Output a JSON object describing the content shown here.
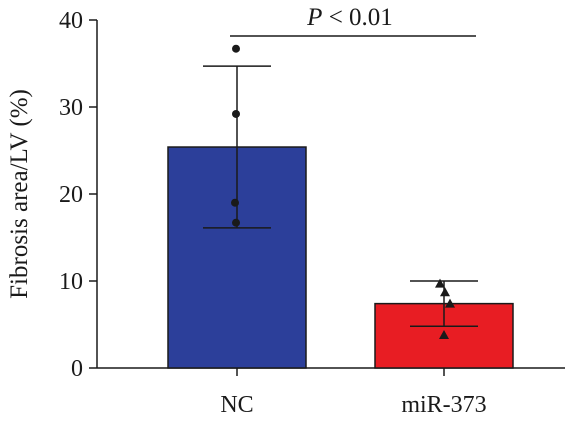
{
  "chart_data": {
    "type": "bar",
    "ylabel": "Fibrosis area/LV (%)",
    "xlabel": "",
    "ylim": [
      0,
      40
    ],
    "yticks": [
      0,
      10,
      20,
      30,
      40
    ],
    "categories": [
      "NC",
      "miR-373"
    ],
    "values": [
      25.4,
      7.4
    ],
    "error_upper": [
      34.7,
      10.0
    ],
    "error_lower": [
      16.1,
      4.8
    ],
    "points": [
      {
        "category": "NC",
        "marker": "circle",
        "values": [
          36.7,
          29.2,
          19.0,
          16.7
        ]
      },
      {
        "category": "miR-373",
        "marker": "triangle",
        "values": [
          9.7,
          8.7,
          7.4,
          3.8
        ]
      }
    ],
    "bar_colors": [
      "#2c3f9a",
      "#e81d23"
    ],
    "annotation": {
      "p_symbol": "P",
      "text": " < 0.01"
    }
  }
}
